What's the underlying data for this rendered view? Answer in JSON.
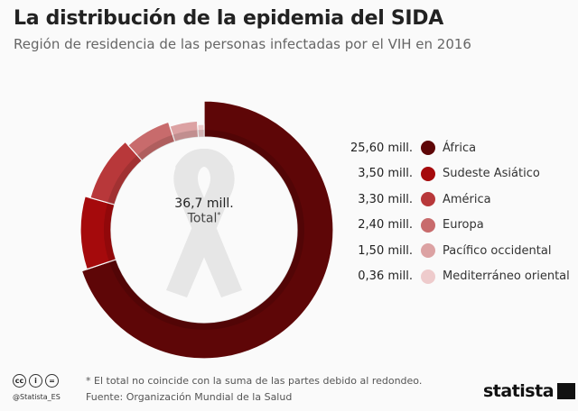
{
  "header": {
    "title": "La distribución de la epidemia del SIDA",
    "subtitle": "Región de residencia de las personas infectadas por el VIH en 2016"
  },
  "chart_data": {
    "type": "pie",
    "style": "donut",
    "categories": [
      "África",
      "Sudeste Asiático",
      "América",
      "Europa",
      "Pacífico occidental",
      "Mediterráneo oriental"
    ],
    "values": [
      25.6,
      3.5,
      3.3,
      2.4,
      1.5,
      0.36
    ],
    "value_labels": [
      "25,60 mill.",
      "3,50 mill.",
      "3,30 mill.",
      "2,40 mill.",
      "1,50 mill.",
      "0,36 mill."
    ],
    "colors": [
      "#5e0607",
      "#a50a0c",
      "#b8383a",
      "#c86b6c",
      "#dca2a3",
      "#eecbcc"
    ],
    "center_value": "36,7 mill.",
    "center_label": "Total",
    "center_mark": "*",
    "legend_position": "right"
  },
  "footer": {
    "note": "* El total no coincide con la suma de las partes debido al redondeo.",
    "source": "Fuente: Organización Mundial de la Salud",
    "handle": "@Statista_ES",
    "brand": "statista",
    "license_icons": [
      "cc",
      "by",
      "nd"
    ]
  }
}
